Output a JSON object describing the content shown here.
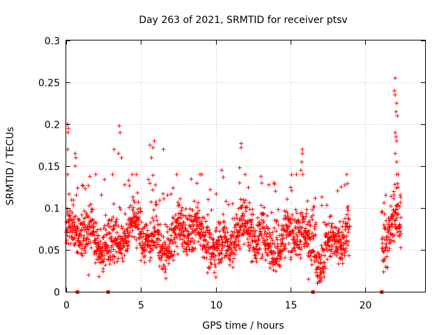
{
  "chart_data": {
    "type": "scatter",
    "title": "Day 263 of 2021, SRMTID for receiver ptsv",
    "xlabel": "GPS time / hours",
    "ylabel": "SRMTID / TECUs",
    "xlim": [
      0,
      24
    ],
    "ylim": [
      0,
      0.3
    ],
    "x_ticks": [
      0,
      5,
      10,
      15,
      20
    ],
    "x_tick_labels": [
      "0",
      "5",
      "10",
      "15",
      "20"
    ],
    "y_ticks": [
      0,
      0.05,
      0.1,
      0.15,
      0.2,
      0.25,
      0.3
    ],
    "y_tick_labels": [
      "0",
      "0.05",
      "0.1",
      "0.15",
      "0.2",
      "0.25",
      "0.3"
    ],
    "grid": true,
    "marker": "+",
    "color": "#ff0000",
    "gap_markers_x": [
      0.75,
      2.8,
      16.5,
      21.1
    ],
    "segments": [
      {
        "x_start": 0.0,
        "x_end": 18.95,
        "base": 0.065,
        "spread": 0.025
      },
      {
        "x_start": 21.1,
        "x_end": 22.4,
        "base": 0.08,
        "spread": 0.03
      }
    ],
    "notable_points": [
      {
        "x": 0.1,
        "y": 0.2
      },
      {
        "x": 0.15,
        "y": 0.195
      },
      {
        "x": 0.12,
        "y": 0.19
      },
      {
        "x": 0.1,
        "y": 0.17
      },
      {
        "x": 0.6,
        "y": 0.165
      },
      {
        "x": 0.65,
        "y": 0.16
      },
      {
        "x": 0.6,
        "y": 0.15
      },
      {
        "x": 3.2,
        "y": 0.17
      },
      {
        "x": 3.55,
        "y": 0.198
      },
      {
        "x": 3.6,
        "y": 0.19
      },
      {
        "x": 3.5,
        "y": 0.165
      },
      {
        "x": 3.7,
        "y": 0.16
      },
      {
        "x": 5.9,
        "y": 0.18
      },
      {
        "x": 5.6,
        "y": 0.175
      },
      {
        "x": 5.8,
        "y": 0.172
      },
      {
        "x": 5.7,
        "y": 0.16
      },
      {
        "x": 6.5,
        "y": 0.17
      },
      {
        "x": 11.7,
        "y": 0.177
      },
      {
        "x": 11.7,
        "y": 0.172
      },
      {
        "x": 11.6,
        "y": 0.148
      },
      {
        "x": 15.8,
        "y": 0.17
      },
      {
        "x": 15.8,
        "y": 0.165
      },
      {
        "x": 15.75,
        "y": 0.155
      },
      {
        "x": 15.7,
        "y": 0.145
      },
      {
        "x": 22.0,
        "y": 0.255
      },
      {
        "x": 21.95,
        "y": 0.24
      },
      {
        "x": 22.0,
        "y": 0.235
      },
      {
        "x": 22.1,
        "y": 0.225
      },
      {
        "x": 22.05,
        "y": 0.215
      },
      {
        "x": 22.15,
        "y": 0.21
      },
      {
        "x": 22.0,
        "y": 0.19
      },
      {
        "x": 22.05,
        "y": 0.185
      },
      {
        "x": 22.1,
        "y": 0.18
      },
      {
        "x": 22.0,
        "y": 0.165
      },
      {
        "x": 22.1,
        "y": 0.155
      },
      {
        "x": 22.2,
        "y": 0.14
      },
      {
        "x": 18.4,
        "y": 0.125
      },
      {
        "x": 18.8,
        "y": 0.1
      },
      {
        "x": 13.9,
        "y": 0.13
      },
      {
        "x": 14.0,
        "y": 0.12
      },
      {
        "x": 15.4,
        "y": 0.14
      },
      {
        "x": 10.4,
        "y": 0.145
      },
      {
        "x": 16.2,
        "y": 0.015
      },
      {
        "x": 16.8,
        "y": 0.01
      },
      {
        "x": 17.0,
        "y": 0.02
      },
      {
        "x": 1.5,
        "y": 0.02
      },
      {
        "x": 2.2,
        "y": 0.018
      }
    ]
  }
}
